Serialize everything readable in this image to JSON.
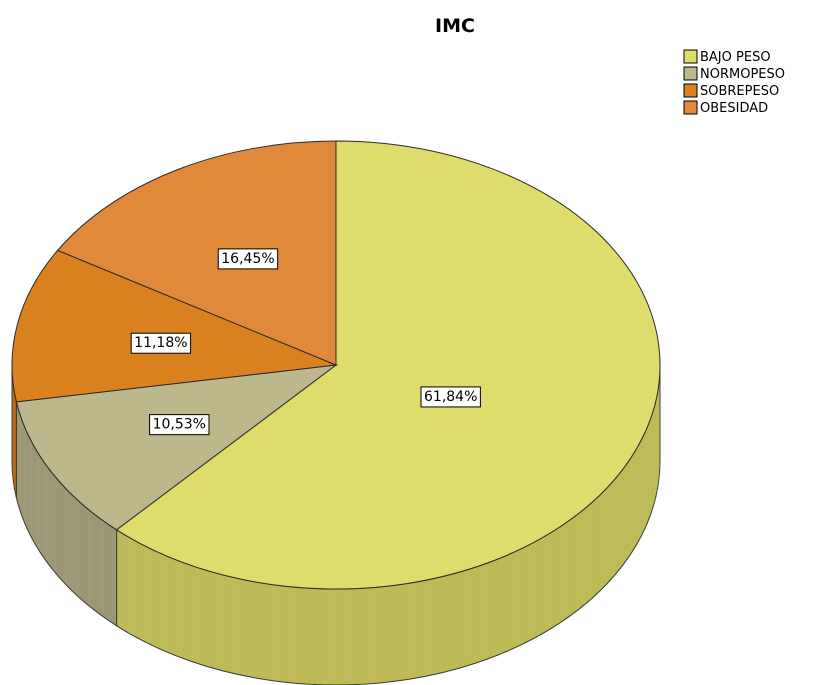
{
  "chart_data": {
    "type": "pie",
    "title": "IMC",
    "three_d": true,
    "legend_position": "top-right",
    "categories": [
      "BAJO PESO",
      "NORMOPESO",
      "SOBREPESO",
      "OBESIDAD"
    ],
    "values": [
      61.84,
      10.53,
      11.18,
      16.45
    ],
    "unit": "%",
    "data_labels": [
      "61,84%",
      "10,53%",
      "11,18%",
      "16,45%"
    ],
    "colors": [
      "#DEDC6A",
      "#BCB88B",
      "#DA8220",
      "#E0893A"
    ],
    "side_colors": [
      "#BDBA57",
      "#9C9876",
      "#B56A17",
      "#BA6F2A"
    ]
  }
}
